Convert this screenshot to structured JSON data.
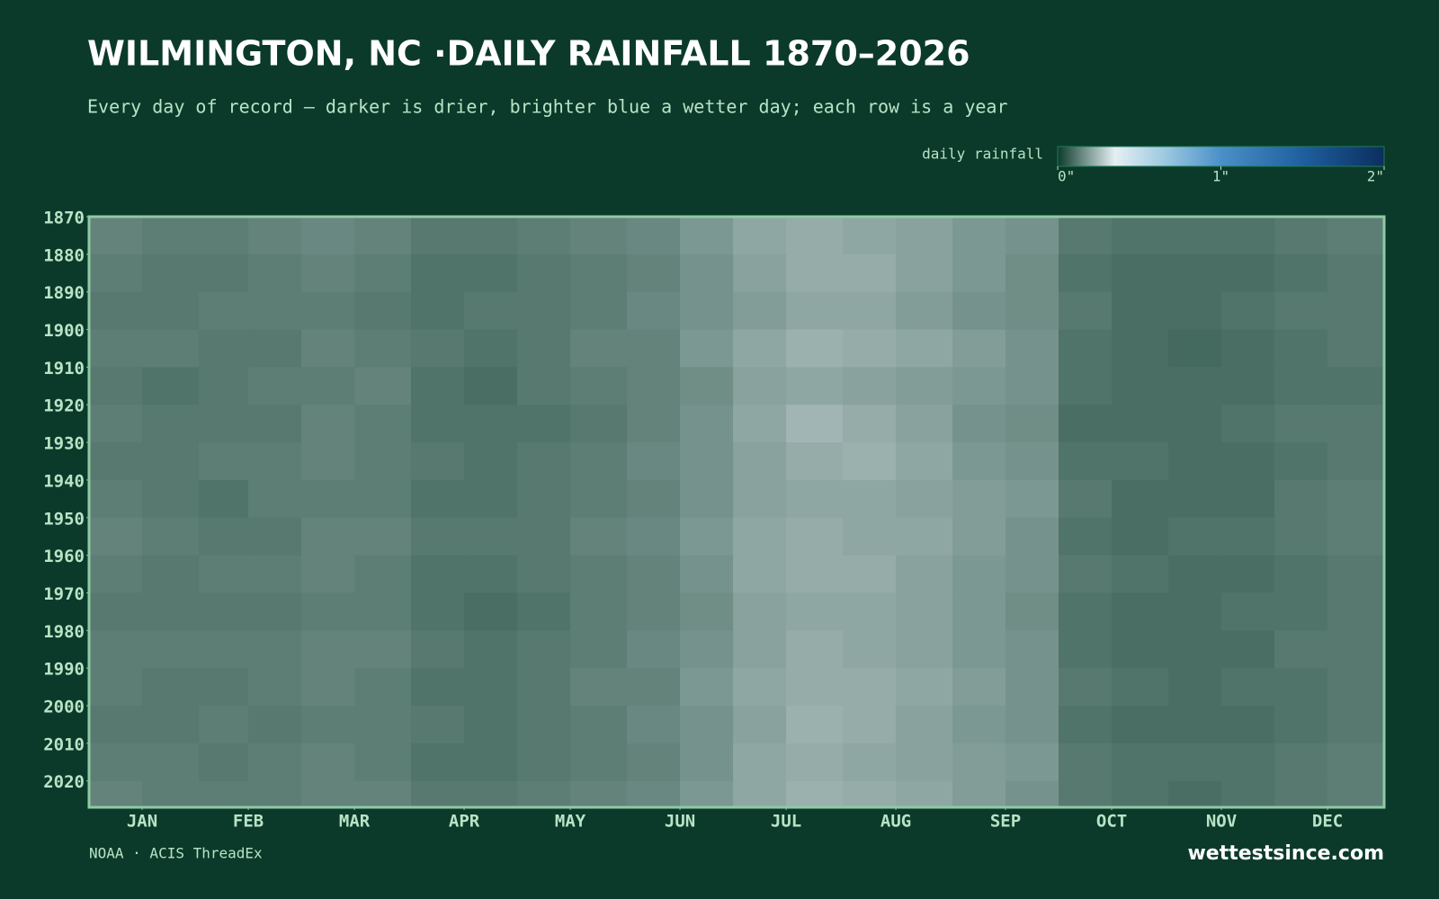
{
  "chart_data": {
    "type": "heatmap",
    "title": "WILMINGTON, NC ·DAILY RAINFALL 1870–2026",
    "subtitle": "Every day of record — darker is drier, brighter blue a wetter day; each row is a year",
    "legend_title": "daily rainfall",
    "zlim": [
      0,
      2
    ],
    "zticks": [
      {
        "value": 0,
        "label": "0\""
      },
      {
        "value": 1,
        "label": "1\""
      },
      {
        "value": 2,
        "label": "2\""
      }
    ],
    "colorscale": [
      [
        0,
        "#0c3b2b"
      ],
      [
        0.35,
        "#e6eff3"
      ],
      [
        0.65,
        "#9ecae1"
      ],
      [
        1,
        "#4a90c8"
      ],
      [
        1.5,
        "#1f5f9e"
      ],
      [
        2,
        "#0b2e5e"
      ]
    ],
    "x": [
      0,
      15,
      31,
      45,
      60,
      75,
      91,
      106,
      121,
      136,
      152,
      167,
      182,
      197,
      213,
      228,
      244,
      259,
      274,
      289,
      305,
      320,
      335,
      350
    ],
    "xlim": [
      0,
      366
    ],
    "xticks": [
      {
        "value": 15,
        "label": "JAN"
      },
      {
        "value": 45,
        "label": "FEB"
      },
      {
        "value": 75,
        "label": "MAR"
      },
      {
        "value": 106,
        "label": "APR"
      },
      {
        "value": 136,
        "label": "MAY"
      },
      {
        "value": 167,
        "label": "JUN"
      },
      {
        "value": 197,
        "label": "JUL"
      },
      {
        "value": 228,
        "label": "AUG"
      },
      {
        "value": 259,
        "label": "SEP"
      },
      {
        "value": 289,
        "label": "OCT"
      },
      {
        "value": 320,
        "label": "NOV"
      },
      {
        "value": 350,
        "label": "DEC"
      }
    ],
    "y": [
      1870,
      1880,
      1890,
      1900,
      1910,
      1920,
      1930,
      1940,
      1950,
      1960,
      1970,
      1980,
      1990,
      2000,
      2010,
      2020
    ],
    "ylim": [
      1870,
      2027
    ],
    "yticks": [
      1870,
      1880,
      1890,
      1900,
      1910,
      1920,
      1930,
      1940,
      1950,
      1960,
      1970,
      1980,
      1990,
      2000,
      2010,
      2020
    ],
    "values": [
      [
        0.14,
        0.13,
        0.13,
        0.14,
        0.15,
        0.14,
        0.12,
        0.12,
        0.13,
        0.14,
        0.15,
        0.18,
        0.21,
        0.22,
        0.21,
        0.2,
        0.18,
        0.17,
        0.12,
        0.11,
        0.11,
        0.11,
        0.12,
        0.13
      ],
      [
        0.13,
        0.12,
        0.12,
        0.13,
        0.14,
        0.13,
        0.11,
        0.11,
        0.12,
        0.13,
        0.14,
        0.17,
        0.2,
        0.22,
        0.22,
        0.2,
        0.18,
        0.16,
        0.11,
        0.1,
        0.1,
        0.1,
        0.11,
        0.12
      ],
      [
        0.12,
        0.12,
        0.13,
        0.13,
        0.13,
        0.12,
        0.11,
        0.12,
        0.12,
        0.13,
        0.15,
        0.17,
        0.19,
        0.21,
        0.21,
        0.19,
        0.17,
        0.16,
        0.12,
        0.1,
        0.1,
        0.11,
        0.12,
        0.12
      ],
      [
        0.13,
        0.13,
        0.12,
        0.12,
        0.14,
        0.13,
        0.12,
        0.11,
        0.12,
        0.14,
        0.14,
        0.18,
        0.21,
        0.23,
        0.22,
        0.21,
        0.19,
        0.17,
        0.11,
        0.1,
        0.09,
        0.1,
        0.11,
        0.12
      ],
      [
        0.12,
        0.11,
        0.12,
        0.13,
        0.13,
        0.14,
        0.11,
        0.1,
        0.12,
        0.13,
        0.14,
        0.16,
        0.2,
        0.21,
        0.2,
        0.19,
        0.18,
        0.17,
        0.11,
        0.1,
        0.1,
        0.1,
        0.11,
        0.11
      ],
      [
        0.13,
        0.12,
        0.12,
        0.12,
        0.14,
        0.13,
        0.11,
        0.11,
        0.11,
        0.12,
        0.14,
        0.17,
        0.21,
        0.24,
        0.22,
        0.2,
        0.17,
        0.16,
        0.1,
        0.1,
        0.1,
        0.11,
        0.12,
        0.12
      ],
      [
        0.12,
        0.12,
        0.13,
        0.13,
        0.14,
        0.13,
        0.12,
        0.11,
        0.12,
        0.13,
        0.15,
        0.17,
        0.2,
        0.22,
        0.23,
        0.21,
        0.18,
        0.17,
        0.11,
        0.11,
        0.1,
        0.1,
        0.11,
        0.12
      ],
      [
        0.13,
        0.12,
        0.11,
        0.13,
        0.13,
        0.13,
        0.11,
        0.11,
        0.12,
        0.13,
        0.14,
        0.17,
        0.2,
        0.21,
        0.21,
        0.2,
        0.19,
        0.18,
        0.12,
        0.1,
        0.1,
        0.1,
        0.12,
        0.13
      ],
      [
        0.14,
        0.13,
        0.12,
        0.12,
        0.14,
        0.14,
        0.12,
        0.12,
        0.12,
        0.14,
        0.15,
        0.18,
        0.21,
        0.22,
        0.21,
        0.21,
        0.19,
        0.17,
        0.11,
        0.1,
        0.11,
        0.11,
        0.12,
        0.13
      ],
      [
        0.13,
        0.12,
        0.13,
        0.13,
        0.14,
        0.13,
        0.11,
        0.11,
        0.12,
        0.13,
        0.14,
        0.17,
        0.21,
        0.22,
        0.22,
        0.2,
        0.18,
        0.17,
        0.12,
        0.11,
        0.1,
        0.1,
        0.11,
        0.12
      ],
      [
        0.12,
        0.12,
        0.12,
        0.12,
        0.13,
        0.13,
        0.11,
        0.1,
        0.11,
        0.13,
        0.14,
        0.16,
        0.2,
        0.21,
        0.21,
        0.2,
        0.18,
        0.16,
        0.11,
        0.1,
        0.1,
        0.11,
        0.11,
        0.12
      ],
      [
        0.13,
        0.13,
        0.13,
        0.13,
        0.14,
        0.14,
        0.12,
        0.11,
        0.12,
        0.13,
        0.15,
        0.17,
        0.2,
        0.22,
        0.21,
        0.2,
        0.18,
        0.17,
        0.11,
        0.1,
        0.1,
        0.1,
        0.12,
        0.12
      ],
      [
        0.13,
        0.12,
        0.12,
        0.13,
        0.14,
        0.13,
        0.11,
        0.11,
        0.12,
        0.14,
        0.14,
        0.18,
        0.21,
        0.22,
        0.22,
        0.21,
        0.19,
        0.17,
        0.12,
        0.11,
        0.1,
        0.11,
        0.11,
        0.12
      ],
      [
        0.12,
        0.12,
        0.13,
        0.12,
        0.13,
        0.13,
        0.12,
        0.11,
        0.12,
        0.13,
        0.15,
        0.17,
        0.2,
        0.23,
        0.22,
        0.2,
        0.18,
        0.17,
        0.11,
        0.1,
        0.1,
        0.1,
        0.11,
        0.12
      ],
      [
        0.13,
        0.13,
        0.12,
        0.13,
        0.14,
        0.13,
        0.11,
        0.11,
        0.12,
        0.13,
        0.14,
        0.17,
        0.21,
        0.22,
        0.21,
        0.2,
        0.19,
        0.18,
        0.12,
        0.11,
        0.11,
        0.11,
        0.12,
        0.13
      ],
      [
        0.14,
        0.13,
        0.13,
        0.13,
        0.14,
        0.14,
        0.12,
        0.12,
        0.13,
        0.14,
        0.15,
        0.18,
        0.21,
        0.23,
        0.22,
        0.21,
        0.19,
        0.17,
        0.12,
        0.11,
        0.1,
        0.11,
        0.12,
        0.13
      ]
    ]
  },
  "footer": {
    "source": "NOAA · ACIS ThreadEx",
    "brand": "wettestsince.com"
  }
}
